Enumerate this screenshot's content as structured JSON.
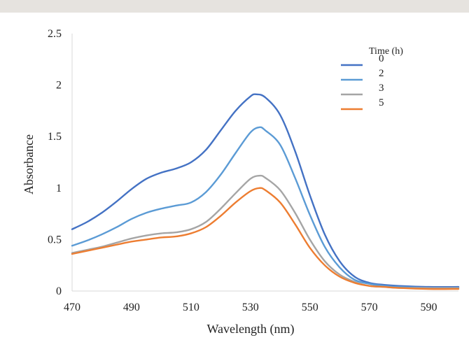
{
  "chart_data": {
    "type": "line",
    "xlabel": "Wavelength (nm)",
    "ylabel": "Absorbance",
    "xlim": [
      470,
      600
    ],
    "ylim": [
      0,
      2.5
    ],
    "xticks": [
      "470",
      "490",
      "510",
      "530",
      "550",
      "570",
      "590"
    ],
    "yticks": [
      "0",
      "0.5",
      "1",
      "1.5",
      "2",
      "2.5"
    ],
    "legend_title": "Time (h)",
    "legend_position": "top-right",
    "grid": false,
    "series": [
      {
        "name": "0",
        "color": "#4472c4",
        "points": [
          [
            470,
            0.6
          ],
          [
            475,
            0.67
          ],
          [
            480,
            0.76
          ],
          [
            485,
            0.87
          ],
          [
            490,
            0.99
          ],
          [
            495,
            1.09
          ],
          [
            500,
            1.15
          ],
          [
            505,
            1.19
          ],
          [
            510,
            1.25
          ],
          [
            515,
            1.37
          ],
          [
            520,
            1.56
          ],
          [
            525,
            1.75
          ],
          [
            530,
            1.89
          ],
          [
            532,
            1.91
          ],
          [
            535,
            1.88
          ],
          [
            540,
            1.71
          ],
          [
            545,
            1.36
          ],
          [
            550,
            0.93
          ],
          [
            555,
            0.55
          ],
          [
            560,
            0.29
          ],
          [
            565,
            0.14
          ],
          [
            570,
            0.08
          ],
          [
            575,
            0.06
          ],
          [
            580,
            0.05
          ],
          [
            590,
            0.04
          ],
          [
            600,
            0.04
          ]
        ]
      },
      {
        "name": "2",
        "color": "#5b9bd5",
        "points": [
          [
            470,
            0.44
          ],
          [
            475,
            0.49
          ],
          [
            480,
            0.55
          ],
          [
            485,
            0.62
          ],
          [
            490,
            0.7
          ],
          [
            495,
            0.76
          ],
          [
            500,
            0.8
          ],
          [
            505,
            0.83
          ],
          [
            510,
            0.86
          ],
          [
            515,
            0.96
          ],
          [
            520,
            1.13
          ],
          [
            525,
            1.34
          ],
          [
            530,
            1.54
          ],
          [
            533,
            1.59
          ],
          [
            535,
            1.56
          ],
          [
            540,
            1.42
          ],
          [
            545,
            1.1
          ],
          [
            550,
            0.74
          ],
          [
            555,
            0.43
          ],
          [
            560,
            0.23
          ],
          [
            565,
            0.11
          ],
          [
            570,
            0.07
          ],
          [
            575,
            0.05
          ],
          [
            580,
            0.04
          ],
          [
            590,
            0.03
          ],
          [
            600,
            0.03
          ]
        ]
      },
      {
        "name": "3",
        "color": "#a5a5a5",
        "points": [
          [
            470,
            0.37
          ],
          [
            475,
            0.4
          ],
          [
            480,
            0.43
          ],
          [
            485,
            0.47
          ],
          [
            490,
            0.51
          ],
          [
            495,
            0.54
          ],
          [
            500,
            0.56
          ],
          [
            505,
            0.57
          ],
          [
            510,
            0.6
          ],
          [
            515,
            0.67
          ],
          [
            520,
            0.8
          ],
          [
            525,
            0.95
          ],
          [
            530,
            1.09
          ],
          [
            533,
            1.12
          ],
          [
            535,
            1.1
          ],
          [
            540,
            0.98
          ],
          [
            545,
            0.76
          ],
          [
            550,
            0.5
          ],
          [
            555,
            0.29
          ],
          [
            560,
            0.16
          ],
          [
            565,
            0.09
          ],
          [
            570,
            0.05
          ],
          [
            575,
            0.04
          ],
          [
            580,
            0.03
          ],
          [
            590,
            0.03
          ],
          [
            600,
            0.03
          ]
        ]
      },
      {
        "name": "5",
        "color": "#ed7d31",
        "points": [
          [
            470,
            0.36
          ],
          [
            475,
            0.39
          ],
          [
            480,
            0.42
          ],
          [
            485,
            0.45
          ],
          [
            490,
            0.48
          ],
          [
            495,
            0.5
          ],
          [
            500,
            0.52
          ],
          [
            505,
            0.53
          ],
          [
            510,
            0.56
          ],
          [
            515,
            0.62
          ],
          [
            520,
            0.73
          ],
          [
            525,
            0.86
          ],
          [
            530,
            0.97
          ],
          [
            533,
            1.0
          ],
          [
            535,
            0.98
          ],
          [
            540,
            0.86
          ],
          [
            545,
            0.65
          ],
          [
            550,
            0.42
          ],
          [
            555,
            0.25
          ],
          [
            560,
            0.14
          ],
          [
            565,
            0.08
          ],
          [
            570,
            0.05
          ],
          [
            575,
            0.04
          ],
          [
            580,
            0.03
          ],
          [
            590,
            0.02
          ],
          [
            600,
            0.02
          ]
        ]
      }
    ]
  }
}
